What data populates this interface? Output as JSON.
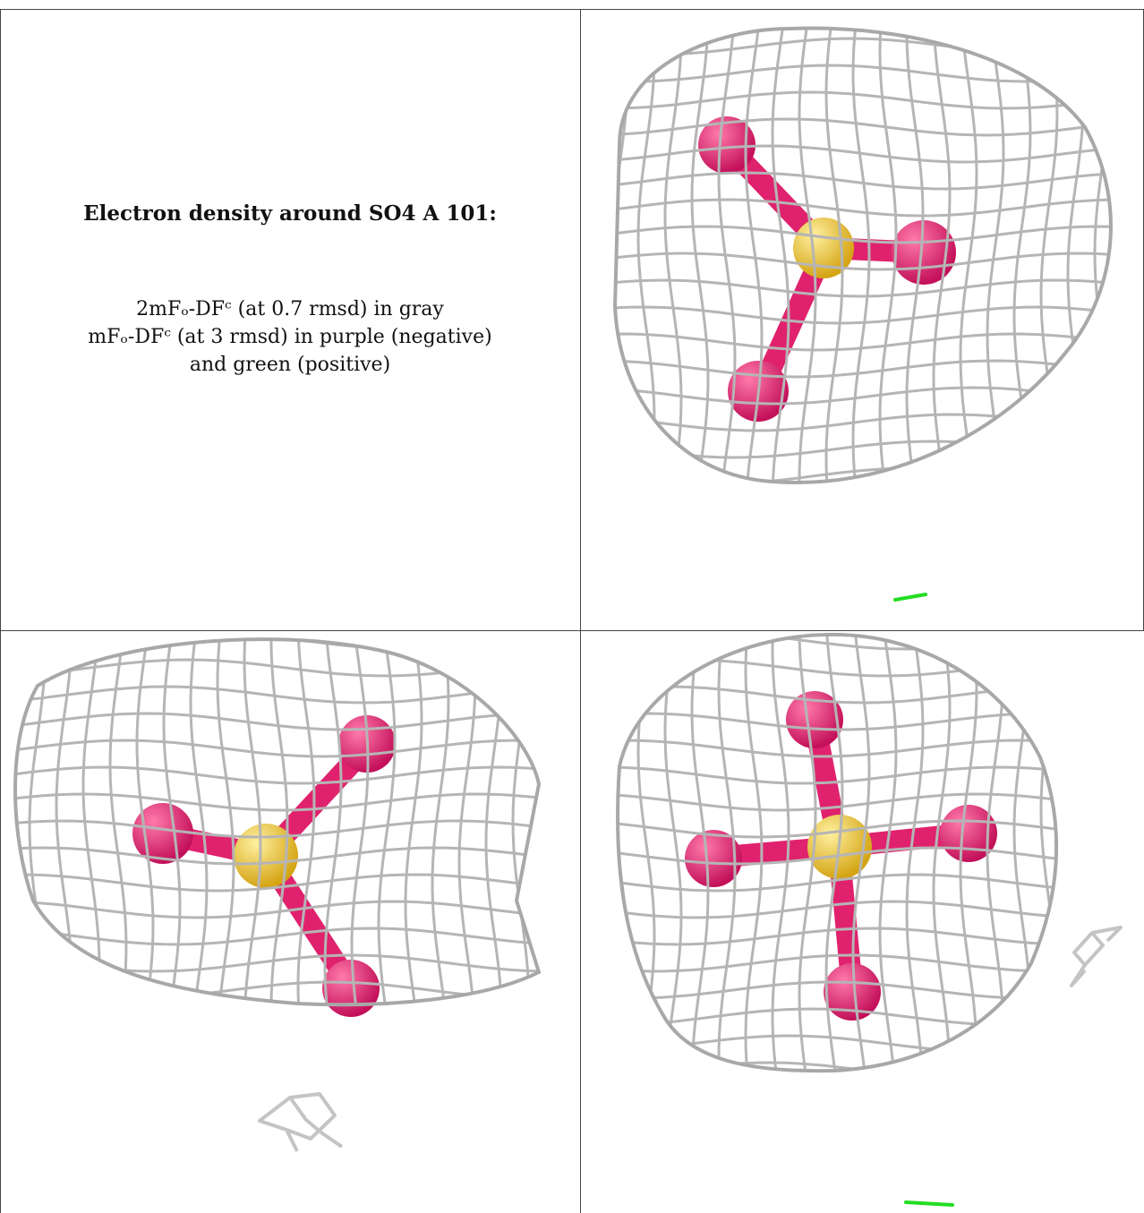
{
  "caption": {
    "title": "Electron density around SO4 A 101:",
    "line1": "2mFₒ-DFᶜ (at 0.7 rmsd) in gray",
    "line2": "mFₒ-DFᶜ (at 3 rmsd) in purple (negative)",
    "line3": "and green (positive)"
  },
  "colors": {
    "mesh": "#b5b5b5",
    "oxygen": "#e0226e",
    "sulfur": "#f2cd3b",
    "positive": "#22dd22",
    "border": "#444444"
  },
  "icons": {
    "views": [
      "sulfate-molecule-view-1",
      "sulfate-molecule-view-2",
      "sulfate-molecule-view-3"
    ]
  }
}
